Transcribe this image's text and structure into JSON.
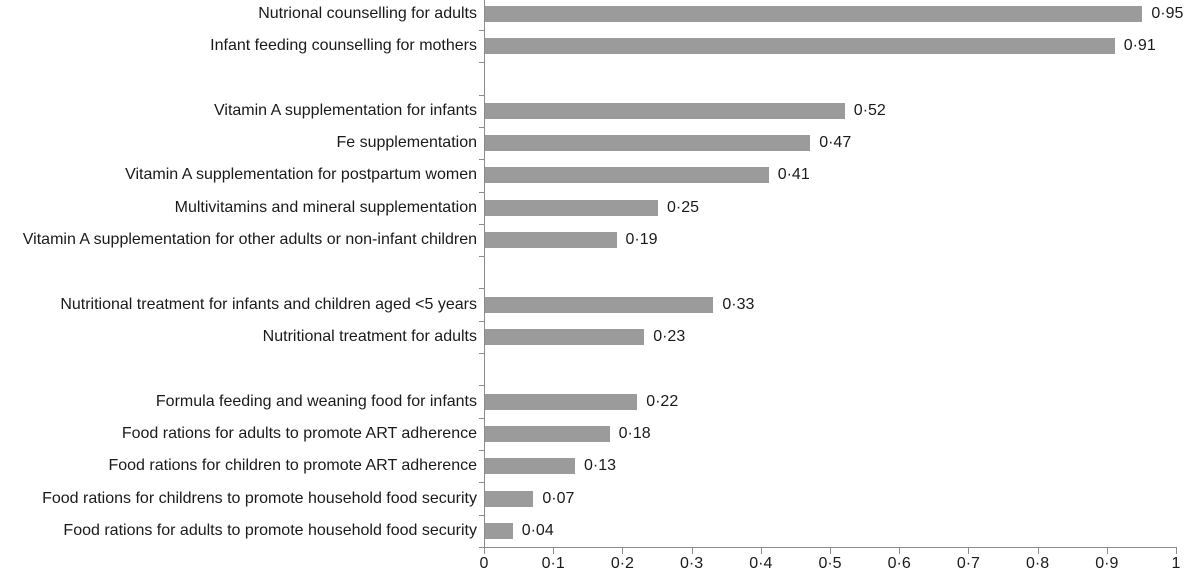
{
  "chart_data": {
    "type": "bar",
    "orientation": "horizontal",
    "title": "",
    "xlabel": "",
    "ylabel": "",
    "xlim": [
      0,
      1
    ],
    "grid": false,
    "legend": false,
    "bar_color": "#9b9b9b",
    "axis_color": "#8c8c8c",
    "text_color": "#1a1a1a",
    "categories": [
      "Nutrional counselling for adults",
      "Infant feeding counselling for mothers",
      "Vitamin A supplementation for infants",
      "Fe supplementation",
      "Vitamin A supplementation for postpartum women",
      "Multivitamins and mineral supplementation",
      "Vitamin A supplementation for other adults or non-infant children",
      "Nutritional treatment for infants and children aged <5 years",
      "Nutritional treatment for adults",
      "Formula feeding and weaning food for infants",
      "Food rations for adults to promote ART adherence",
      "Food rations for children to promote ART adherence",
      "Food rations for childrens to promote household food security",
      "Food rations for adults to promote household food security"
    ],
    "values": [
      0.95,
      0.91,
      0.52,
      0.47,
      0.41,
      0.25,
      0.19,
      0.33,
      0.23,
      0.22,
      0.18,
      0.13,
      0.07,
      0.04
    ],
    "value_labels": [
      "0·95",
      "0·91",
      "0·52",
      "0·47",
      "0·41",
      "0·25",
      "0·19",
      "0·33",
      "0·23",
      "0·22",
      "0·18",
      "0·13",
      "0·07",
      "0·04"
    ],
    "gap_after_indices": [
      1,
      6,
      8
    ],
    "x_tick_labels": [
      "0",
      "0·1",
      "0·2",
      "0·3",
      "0·4",
      "0·5",
      "0·6",
      "0·7",
      "0·8",
      "0·9",
      "1"
    ]
  }
}
